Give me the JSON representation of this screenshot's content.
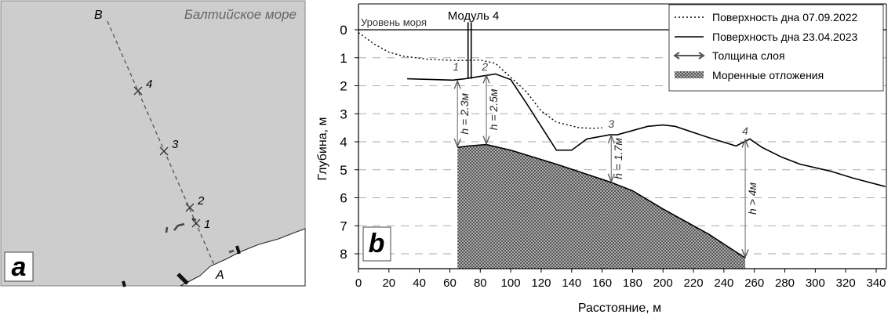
{
  "map": {
    "title": "Балтийское море",
    "panel_label": "a",
    "point_A": "A",
    "point_B": "B",
    "stations": [
      "1",
      "2",
      "3",
      "4"
    ],
    "colors": {
      "sea": "#cdcdcd",
      "land": "#ffffff"
    }
  },
  "chart_data": {
    "type": "line",
    "panel_label": "b",
    "xlabel": "Расстояние, м",
    "ylabel": "Глубина, м",
    "xlim": [
      0,
      346
    ],
    "ylim": [
      8.53,
      -0.5
    ],
    "xticks": [
      0,
      20,
      40,
      60,
      80,
      100,
      120,
      140,
      160,
      180,
      200,
      220,
      240,
      260,
      280,
      300,
      320,
      340
    ],
    "yticks": [
      0,
      1,
      2,
      3,
      4,
      5,
      6,
      7,
      8
    ],
    "grid": "horizontal dashed",
    "legend_position": "top-right",
    "sea_level_label": "Уровень моря",
    "module_label": "Модуль 4",
    "module_x": 73,
    "series": [
      {
        "name": "Поверхность дна 07.09.2022",
        "style": "dotted",
        "x": [
          0,
          10,
          20,
          30,
          45,
          65,
          80,
          90,
          100,
          110,
          120,
          130,
          145,
          155,
          160
        ],
        "y": [
          0.1,
          0.5,
          0.8,
          0.95,
          1.05,
          1.1,
          1.08,
          1.2,
          1.7,
          2.2,
          2.9,
          3.3,
          3.5,
          3.52,
          3.5
        ]
      },
      {
        "name": "Поверхность дна 23.04.2023",
        "style": "solid",
        "x": [
          32,
          62,
          70,
          90,
          100,
          110,
          130,
          140,
          150,
          165,
          170,
          190,
          200,
          208,
          230,
          248,
          257,
          265,
          278,
          290,
          310,
          325,
          346
        ],
        "y": [
          1.75,
          1.8,
          1.75,
          1.58,
          1.78,
          2.6,
          4.3,
          4.3,
          3.9,
          3.75,
          3.75,
          3.45,
          3.4,
          3.45,
          3.85,
          4.15,
          3.9,
          4.2,
          4.55,
          4.8,
          5.05,
          5.3,
          5.6
        ]
      },
      {
        "name": "Моренные отложения",
        "style": "hatched-fill",
        "x": [
          65,
          72,
          84,
          100,
          130,
          166,
          180,
          200,
          230,
          254
        ],
        "y": [
          4.2,
          4.15,
          4.1,
          4.3,
          4.8,
          5.45,
          5.75,
          6.4,
          7.3,
          8.15
        ]
      }
    ],
    "thickness_legend": "Толщина слоя",
    "thickness": [
      {
        "x": 65,
        "top": 1.8,
        "bottom": 4.2,
        "label": "h = 2.3м"
      },
      {
        "x": 84,
        "top": 1.6,
        "bottom": 4.1,
        "label": "h = 2.5м"
      },
      {
        "x": 166,
        "top": 3.75,
        "bottom": 5.45,
        "label": "h = 1.7м"
      },
      {
        "x": 254,
        "top": 3.9,
        "bottom": 8.15,
        "label": "h > 4м"
      }
    ],
    "stations": [
      {
        "label": "1",
        "x": 64,
        "y": 1.45
      },
      {
        "label": "2",
        "x": 83,
        "y": 1.45
      },
      {
        "label": "3",
        "x": 166,
        "y": 3.5
      },
      {
        "label": "4",
        "x": 254,
        "y": 3.75
      }
    ]
  }
}
